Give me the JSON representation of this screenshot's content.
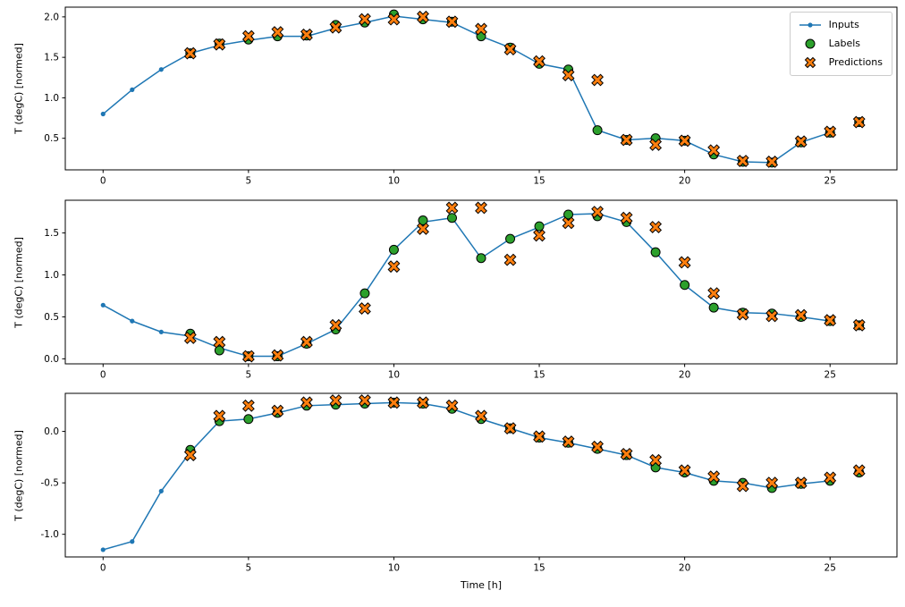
{
  "figure": {
    "background": "#ffffff",
    "xlabel": "Time [h]",
    "ylabel": "T (degC) [normed]",
    "xticks": [
      0,
      5,
      10,
      15,
      20,
      25
    ],
    "xlim": [
      -1.3,
      27.3
    ],
    "colors": {
      "inputs": "#1f77b4",
      "labels": "#2ca02c",
      "predictions": "#ff7f0e",
      "marker_edge": "#000000",
      "axes": "#000000"
    },
    "legend": {
      "position": "upper right",
      "items": [
        {
          "label": "Inputs",
          "marker": "line-dot"
        },
        {
          "label": "Labels",
          "marker": "circle"
        },
        {
          "label": "Predictions",
          "marker": "x"
        }
      ]
    }
  },
  "chart_data": [
    {
      "type": "line",
      "subplot": 1,
      "ylabel": "T (degC) [normed]",
      "ylim": [
        0.11,
        2.12
      ],
      "yticks": [
        0.5,
        1.0,
        1.5,
        2.0
      ],
      "series": [
        {
          "name": "Inputs",
          "style": "line-dot",
          "x": [
            0,
            1,
            2,
            3,
            4,
            5,
            6,
            7,
            8,
            9,
            10,
            11,
            12,
            13,
            14,
            15,
            16,
            17,
            18,
            19,
            20,
            21,
            22,
            23,
            24,
            25
          ],
          "y": [
            0.8,
            1.1,
            1.35,
            1.55,
            1.65,
            1.71,
            1.76,
            1.76,
            1.86,
            1.93,
            2.01,
            1.97,
            1.93,
            1.76,
            1.62,
            1.42,
            1.35,
            0.6,
            0.48,
            0.5,
            0.47,
            0.3,
            0.21,
            0.2,
            0.45,
            0.57
          ]
        },
        {
          "name": "Labels",
          "style": "scatter-circle",
          "x": [
            3,
            4,
            5,
            6,
            7,
            8,
            9,
            10,
            11,
            12,
            13,
            14,
            15,
            16,
            17,
            18,
            19,
            20,
            21,
            22,
            23,
            24,
            25,
            26
          ],
          "y": [
            1.55,
            1.67,
            1.72,
            1.76,
            1.77,
            1.9,
            1.93,
            2.03,
            1.97,
            1.94,
            1.76,
            1.62,
            1.42,
            1.35,
            0.6,
            0.48,
            0.5,
            0.47,
            0.3,
            0.21,
            0.2,
            0.45,
            0.57,
            0.7
          ]
        },
        {
          "name": "Predictions",
          "style": "scatter-x",
          "x": [
            3,
            4,
            5,
            6,
            7,
            8,
            9,
            10,
            11,
            12,
            13,
            14,
            15,
            16,
            17,
            18,
            19,
            20,
            21,
            22,
            23,
            24,
            25,
            26
          ],
          "y": [
            1.55,
            1.66,
            1.76,
            1.81,
            1.78,
            1.87,
            1.97,
            1.97,
            2.0,
            1.94,
            1.85,
            1.6,
            1.45,
            1.28,
            1.22,
            0.48,
            0.42,
            0.47,
            0.35,
            0.22,
            0.21,
            0.46,
            0.58,
            0.7
          ]
        }
      ]
    },
    {
      "type": "line",
      "subplot": 2,
      "ylabel": "T (degC) [normed]",
      "ylim": [
        -0.06,
        1.89
      ],
      "yticks": [
        0.0,
        0.5,
        1.0,
        1.5
      ],
      "series": [
        {
          "name": "Inputs",
          "style": "line-dot",
          "x": [
            0,
            1,
            2,
            3,
            4,
            5,
            6,
            7,
            8,
            9,
            10,
            11,
            12,
            13,
            14,
            15,
            16,
            17,
            18,
            19,
            20,
            21,
            22,
            23,
            24,
            25
          ],
          "y": [
            0.64,
            0.45,
            0.32,
            0.27,
            0.13,
            0.03,
            0.03,
            0.18,
            0.35,
            0.78,
            1.3,
            1.63,
            1.68,
            1.2,
            1.43,
            1.57,
            1.72,
            1.73,
            1.63,
            1.27,
            0.88,
            0.61,
            0.55,
            0.54,
            0.5,
            0.45
          ]
        },
        {
          "name": "Labels",
          "style": "scatter-circle",
          "x": [
            3,
            4,
            5,
            6,
            7,
            8,
            9,
            10,
            11,
            12,
            13,
            14,
            15,
            16,
            17,
            18,
            19,
            20,
            21,
            22,
            23,
            24,
            25,
            26
          ],
          "y": [
            0.3,
            0.1,
            0.03,
            0.03,
            0.18,
            0.35,
            0.78,
            1.3,
            1.65,
            1.68,
            1.2,
            1.43,
            1.58,
            1.72,
            1.7,
            1.63,
            1.27,
            0.88,
            0.61,
            0.55,
            0.54,
            0.5,
            0.45,
            0.4
          ]
        },
        {
          "name": "Predictions",
          "style": "scatter-x",
          "x": [
            3,
            4,
            5,
            6,
            7,
            8,
            9,
            10,
            11,
            12,
            13,
            14,
            15,
            16,
            17,
            18,
            19,
            20,
            21,
            22,
            23,
            24,
            25,
            26
          ],
          "y": [
            0.25,
            0.2,
            0.03,
            0.04,
            0.2,
            0.4,
            0.6,
            1.1,
            1.55,
            1.8,
            1.8,
            1.18,
            1.47,
            1.62,
            1.75,
            1.68,
            1.57,
            1.15,
            0.78,
            0.53,
            0.51,
            0.52,
            0.46,
            0.4
          ]
        }
      ]
    },
    {
      "type": "line",
      "subplot": 3,
      "ylabel": "T (degC) [normed]",
      "ylim": [
        -1.22,
        0.37
      ],
      "yticks": [
        -1.0,
        -0.5,
        0.0
      ],
      "series": [
        {
          "name": "Inputs",
          "style": "line-dot",
          "x": [
            0,
            1,
            2,
            3,
            4,
            5,
            6,
            7,
            8,
            9,
            10,
            11,
            12,
            13,
            14,
            15,
            16,
            17,
            18,
            19,
            20,
            21,
            22,
            23,
            24,
            25
          ],
          "y": [
            -1.15,
            -1.07,
            -0.58,
            -0.2,
            0.1,
            0.12,
            0.18,
            0.25,
            0.26,
            0.27,
            0.28,
            0.27,
            0.22,
            0.12,
            0.03,
            -0.06,
            -0.11,
            -0.17,
            -0.23,
            -0.35,
            -0.4,
            -0.48,
            -0.5,
            -0.55,
            -0.51,
            -0.48
          ]
        },
        {
          "name": "Labels",
          "style": "scatter-circle",
          "x": [
            3,
            4,
            5,
            6,
            7,
            8,
            9,
            10,
            11,
            12,
            13,
            14,
            15,
            16,
            17,
            18,
            19,
            20,
            21,
            22,
            23,
            24,
            25,
            26
          ],
          "y": [
            -0.18,
            0.1,
            0.12,
            0.18,
            0.25,
            0.26,
            0.27,
            0.28,
            0.27,
            0.22,
            0.12,
            0.03,
            -0.06,
            -0.11,
            -0.17,
            -0.23,
            -0.35,
            -0.4,
            -0.48,
            -0.5,
            -0.55,
            -0.51,
            -0.48,
            -0.4
          ]
        },
        {
          "name": "Predictions",
          "style": "scatter-x",
          "x": [
            3,
            4,
            5,
            6,
            7,
            8,
            9,
            10,
            11,
            12,
            13,
            14,
            15,
            16,
            17,
            18,
            19,
            20,
            21,
            22,
            23,
            24,
            25,
            26
          ],
          "y": [
            -0.23,
            0.15,
            0.25,
            0.2,
            0.28,
            0.3,
            0.3,
            0.28,
            0.28,
            0.25,
            0.15,
            0.03,
            -0.05,
            -0.1,
            -0.15,
            -0.22,
            -0.28,
            -0.38,
            -0.44,
            -0.53,
            -0.5,
            -0.5,
            -0.45,
            -0.38
          ]
        }
      ]
    }
  ]
}
